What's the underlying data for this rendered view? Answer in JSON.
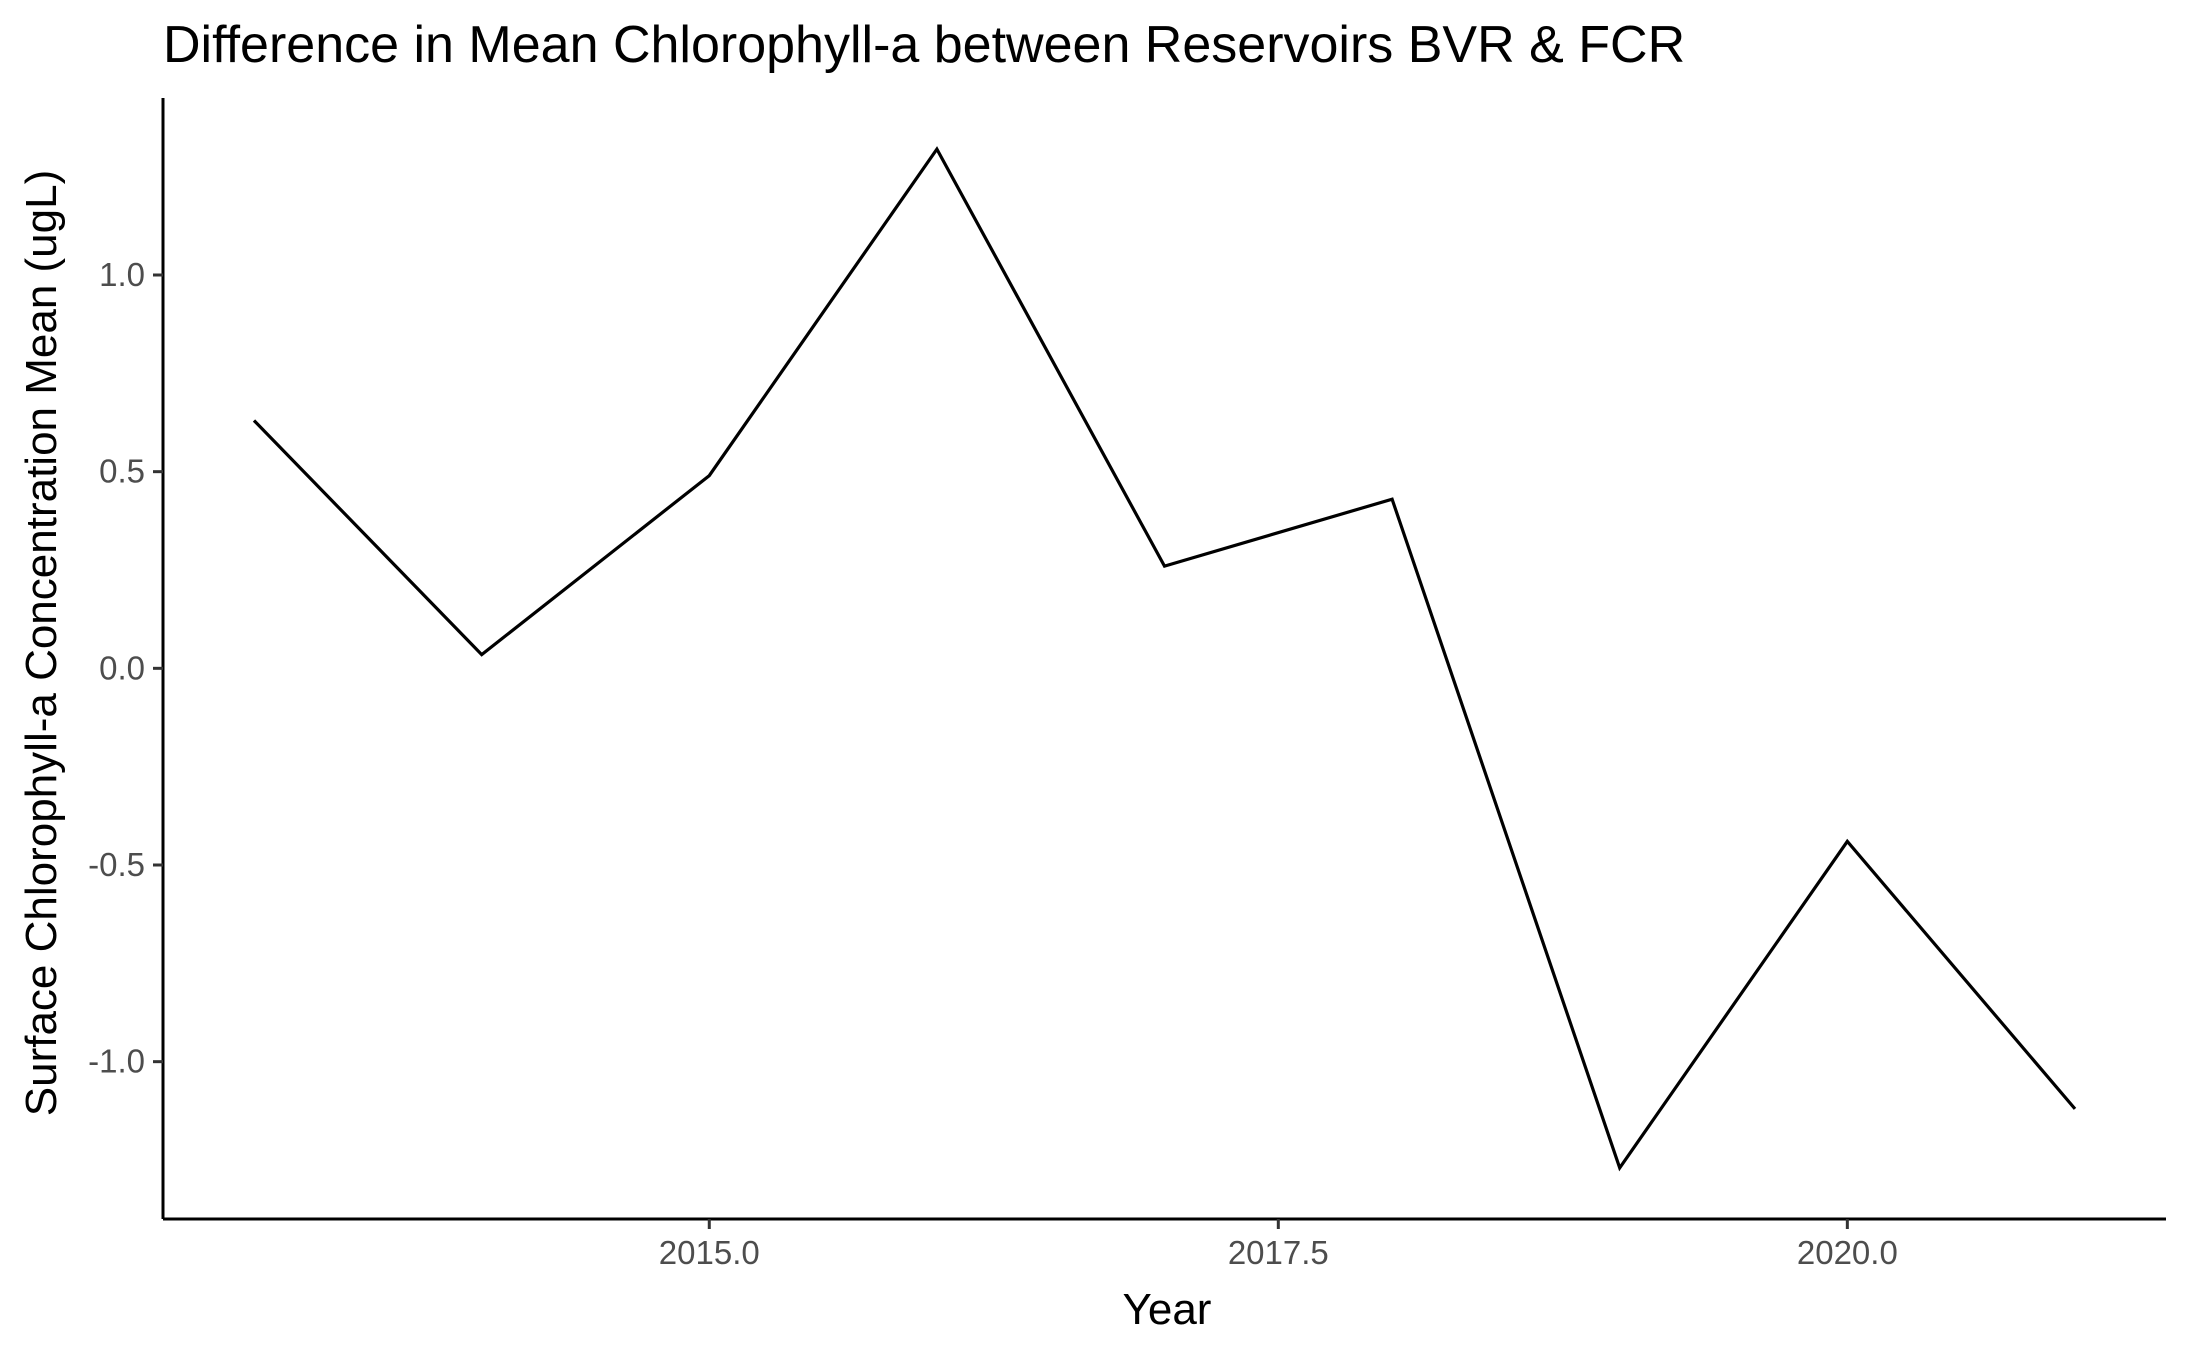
{
  "chart_data": {
    "type": "line",
    "title": "Difference in Mean Chlorophyll-a between Reservoirs BVR & FCR",
    "xlabel": "Year",
    "ylabel": "Surface Chlorophyll-a Concentration Mean (ugL)",
    "xlim": [
      2012.6,
      2021.4
    ],
    "ylim": [
      -1.4,
      1.45
    ],
    "x_ticks": [
      2015.0,
      2017.5,
      2020.0
    ],
    "x_tick_labels": [
      "2015.0",
      "2017.5",
      "2020.0"
    ],
    "y_ticks": [
      -1.0,
      -0.5,
      0.0,
      0.5,
      1.0
    ],
    "y_tick_labels": [
      "-1.0",
      "-0.5",
      "0.0",
      "0.5",
      "1.0"
    ],
    "grid": false,
    "series": [
      {
        "x": [
          2013,
          2014,
          2015,
          2016,
          2017,
          2018,
          2019,
          2020,
          2021
        ],
        "values": [
          0.63,
          0.035,
          0.49,
          1.32,
          0.26,
          0.43,
          -1.27,
          -0.44,
          -1.12
        ],
        "color": "#000000"
      }
    ]
  }
}
